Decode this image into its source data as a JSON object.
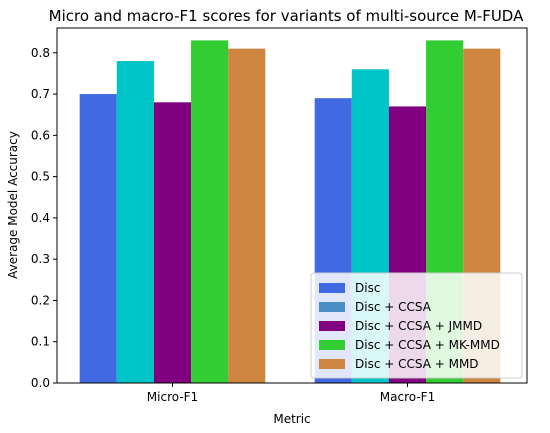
{
  "chart_data": {
    "type": "bar",
    "title": "Micro and macro-F1 scores for variants of multi-source M-FUDA",
    "xlabel": "Metric",
    "ylabel": "Average Model Accuracy",
    "categories": [
      "Micro-F1",
      "Macro-F1"
    ],
    "ylim": [
      0,
      0.86
    ],
    "yticks": [
      0.0,
      0.1,
      0.2,
      0.3,
      0.4,
      0.5,
      0.6,
      0.7,
      0.8
    ],
    "grid": false,
    "legend_position": "lower-right",
    "series": [
      {
        "name": "Disc",
        "color": "#4169e1",
        "values": [
          0.7,
          0.69
        ]
      },
      {
        "name": "Disc + CCSA",
        "color": "#00c5c8",
        "legend_color": "#4a8fc4",
        "values": [
          0.78,
          0.76
        ]
      },
      {
        "name": "Disc + CCSA + JMMD",
        "color": "#800080",
        "values": [
          0.68,
          0.67
        ]
      },
      {
        "name": "Disc + CCSA + MK-MMD",
        "color": "#32cd32",
        "values": [
          0.83,
          0.83
        ]
      },
      {
        "name": "Disc + CCSA + MMD",
        "color": "#cd853f",
        "values": [
          0.81,
          0.81
        ]
      }
    ]
  }
}
